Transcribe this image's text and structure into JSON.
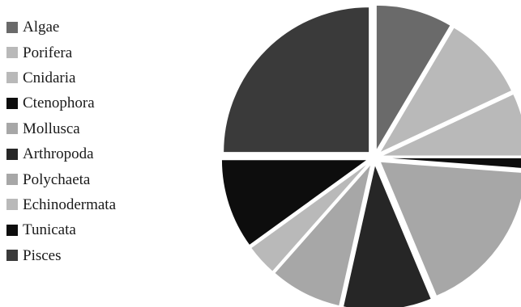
{
  "chart_data": {
    "type": "pie",
    "title": "",
    "legend_position": "left",
    "exploded": true,
    "start_angle_deg": 90,
    "direction": "clockwise",
    "slices": [
      {
        "label": "Algae",
        "value": 8.5,
        "color": "#6a6a6a"
      },
      {
        "label": "Porifera",
        "value": 9.5,
        "color": "#b9b9b9"
      },
      {
        "label": "Cnidaria",
        "value": 7.0,
        "color": "#b9b9b9"
      },
      {
        "label": "Ctenophora",
        "value": 1.2,
        "color": "#0d0d0d"
      },
      {
        "label": "Mollusca",
        "value": 17.5,
        "color": "#a7a7a7"
      },
      {
        "label": "Arthropoda",
        "value": 9.8,
        "color": "#262626"
      },
      {
        "label": "Polychaeta",
        "value": 8.0,
        "color": "#a7a7a7"
      },
      {
        "label": "Echinodermata",
        "value": 3.5,
        "color": "#b9b9b9"
      },
      {
        "label": "Tunicata",
        "value": 10.0,
        "color": "#0d0d0d"
      },
      {
        "label": "Pisces",
        "value": 25.0,
        "color": "#3a3a3a"
      }
    ]
  }
}
